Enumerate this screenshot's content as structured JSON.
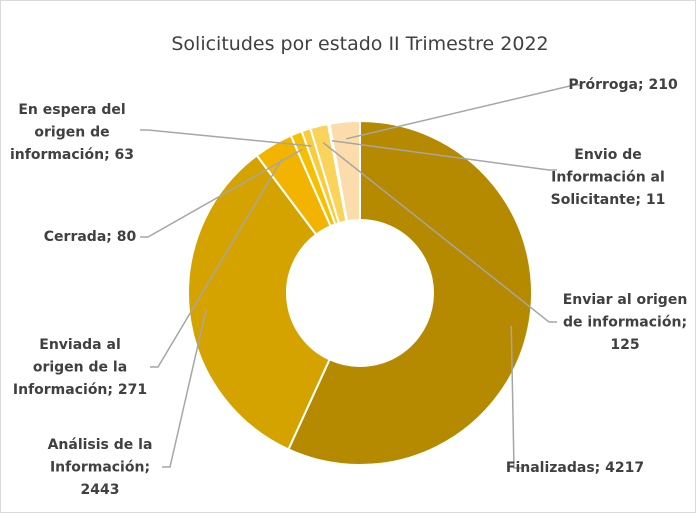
{
  "chart_data": {
    "type": "donut",
    "title": "Solicitudes por estado II Trimestre 2022",
    "values": [
      4217,
      2443,
      271,
      80,
      63,
      125,
      11,
      210
    ],
    "value_labels": [
      [
        "Finalizadas; 4217"
      ],
      [
        "Análisis de la",
        "Información;",
        "2443"
      ],
      [
        "Enviada al",
        "origen de la",
        "Información; 271"
      ],
      [
        "Cerrada; 80"
      ],
      [
        "En espera del",
        "origen de",
        "información; 63"
      ],
      [
        "Enviar al origen",
        "de información;",
        "125"
      ],
      [
        "Envio de",
        "Información al",
        "Solicitante; 11"
      ],
      [
        "Prórroga; 210"
      ]
    ],
    "colors": [
      "#b58900",
      "#d4a300",
      "#f2b400",
      "#f6c000",
      "#f8cc3a",
      "#f9d35a",
      "#fbdb80",
      "#fcdcaa"
    ]
  }
}
